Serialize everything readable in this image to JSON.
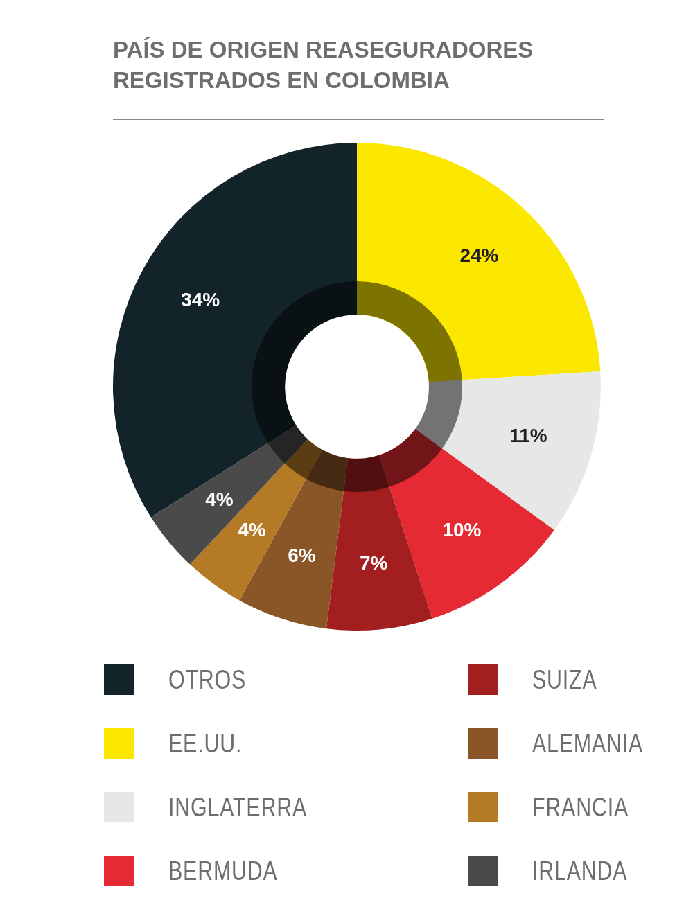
{
  "chart_data": {
    "type": "donut",
    "title": "PAÍS DE ORIGEN REASEGURADORES REGISTRADOS EN COLOMBIA",
    "categories": [
      "OTROS",
      "EE.UU.",
      "INGLATERRA",
      "BERMUDA",
      "SUIZA",
      "ALEMANIA",
      "FRANCIA",
      "IRLANDA"
    ],
    "values": [
      34,
      24,
      11,
      10,
      7,
      6,
      4,
      4
    ],
    "colors": [
      "#13232a",
      "#fbe700",
      "#e6e7e7",
      "#e52a33",
      "#a31f1f",
      "#8a5627",
      "#b57a25",
      "#4a4a4a"
    ],
    "value_labels": [
      "34%",
      "24%",
      "11%",
      "10%",
      "7%",
      "6%",
      "4%",
      "4%"
    ],
    "legend": "bottom"
  }
}
